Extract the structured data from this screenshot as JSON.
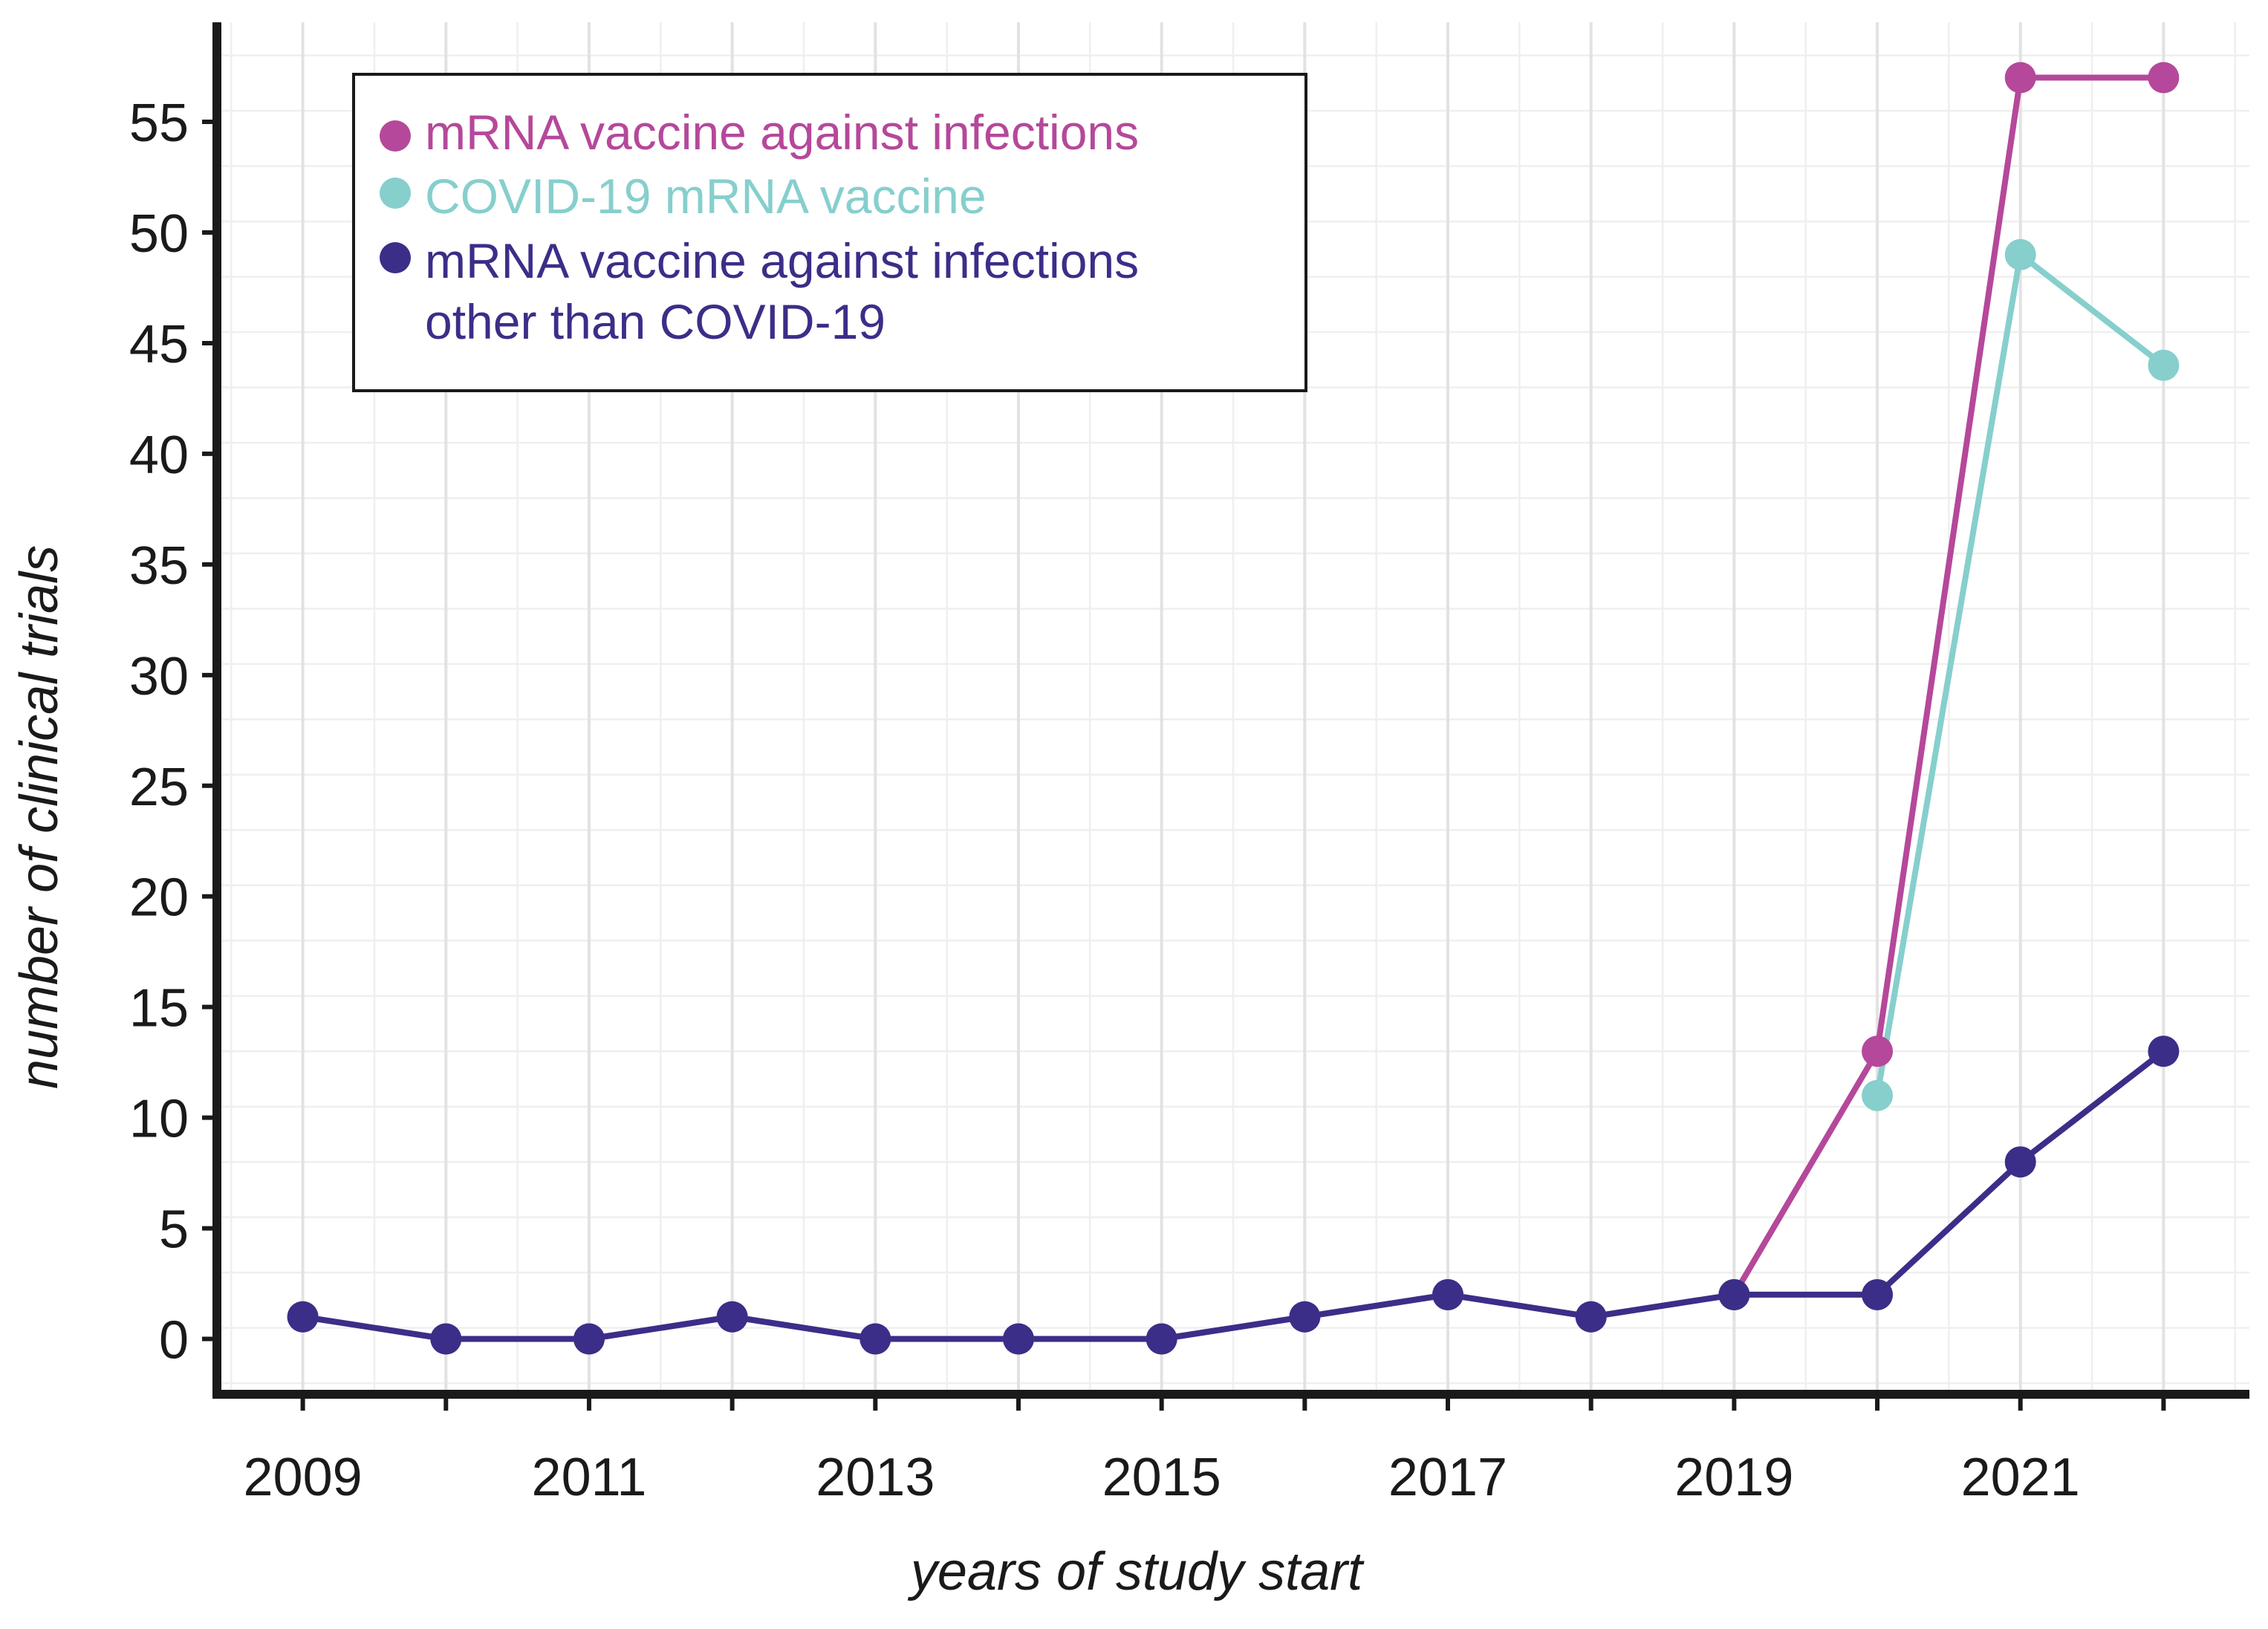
{
  "chart_data": {
    "type": "line",
    "title": "",
    "xlabel": "years of study start",
    "ylabel": "number of clinical trials",
    "x": [
      2009,
      2010,
      2011,
      2012,
      2013,
      2014,
      2015,
      2016,
      2017,
      2018,
      2019,
      2020,
      2021,
      2022
    ],
    "xlim": [
      2008.4,
      2022.6
    ],
    "ylim": [
      -2.5,
      59.5
    ],
    "x_ticks": [
      "2009",
      "2011",
      "2013",
      "2015",
      "2017",
      "2019",
      "2021"
    ],
    "x_tick_values": [
      2009,
      2011,
      2013,
      2015,
      2017,
      2019,
      2021
    ],
    "y_ticks": [
      "0",
      "5",
      "10",
      "15",
      "20",
      "25",
      "30",
      "35",
      "40",
      "45",
      "50",
      "55"
    ],
    "y_tick_values": [
      0,
      5,
      10,
      15,
      20,
      25,
      30,
      35,
      40,
      45,
      50,
      55
    ],
    "grid": true,
    "legend_position": "top-left",
    "series": [
      {
        "name": "mRNA vaccine against infections",
        "color": "#b5489a",
        "x": [
          2009,
          2010,
          2011,
          2012,
          2013,
          2014,
          2015,
          2016,
          2017,
          2018,
          2019,
          2020,
          2021,
          2022
        ],
        "values": [
          1,
          0,
          0,
          1,
          0,
          0,
          0,
          1,
          2,
          1,
          2,
          13,
          57,
          57
        ]
      },
      {
        "name": "COVID-19 mRNA vaccine",
        "color": "#86cfcd",
        "x": [
          2020,
          2021,
          2022
        ],
        "values": [
          11,
          49,
          44
        ]
      },
      {
        "name": "mRNA vaccine against infections other than COVID-19",
        "legend_lines": [
          "mRNA vaccine against infections",
          "other than COVID-19"
        ],
        "color": "#3b2e88",
        "x": [
          2009,
          2010,
          2011,
          2012,
          2013,
          2014,
          2015,
          2016,
          2017,
          2018,
          2019,
          2020,
          2021,
          2022
        ],
        "values": [
          1,
          0,
          0,
          1,
          0,
          0,
          0,
          1,
          2,
          1,
          2,
          2,
          8,
          13
        ]
      }
    ]
  }
}
